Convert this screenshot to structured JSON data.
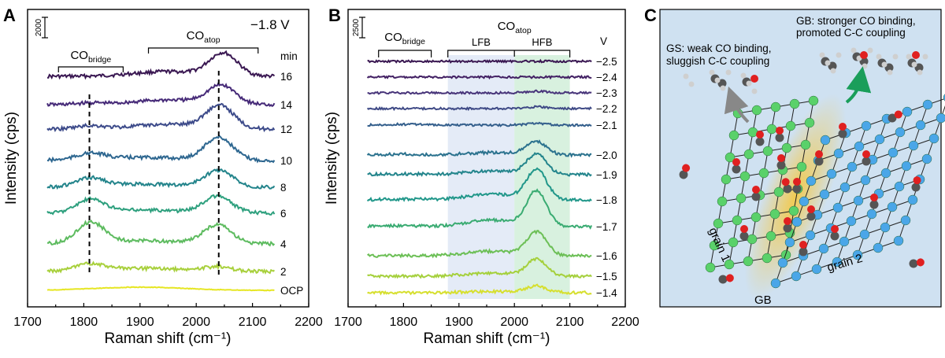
{
  "panel_labels": {
    "a": "A",
    "b": "B",
    "c": "C"
  },
  "chart_data": [
    {
      "type": "line",
      "panel": "A",
      "xlabel": "Raman shift (cm⁻¹)",
      "ylabel": "Intensity (cps)",
      "xlim": [
        1700,
        2200
      ],
      "xticks": [
        1700,
        1800,
        1900,
        2000,
        2100,
        2200
      ],
      "scale_bar": "2000",
      "potential": "−1.8 V",
      "unit_header": "min",
      "annotations": {
        "bridge_main": "CO",
        "bridge_sub": "bridge",
        "atop_main": "CO",
        "atop_sub": "atop"
      },
      "bridge_range": [
        1755,
        1870
      ],
      "atop_range": [
        1915,
        2110
      ],
      "dashed_lines": [
        1810,
        2040
      ],
      "series": [
        {
          "name": "16",
          "color": "#3a1852",
          "bridge_amp": 0.0,
          "atop_amp": 0.55,
          "atop_center": 2048
        },
        {
          "name": "14",
          "color": "#462a78",
          "bridge_amp": 0.05,
          "atop_amp": 0.45,
          "atop_center": 2045
        },
        {
          "name": "12",
          "color": "#3d4b8a",
          "bridge_amp": 0.1,
          "atop_amp": 0.55,
          "atop_center": 2042
        },
        {
          "name": "10",
          "color": "#2e6790",
          "bridge_amp": 0.18,
          "atop_amp": 0.55,
          "atop_center": 2040
        },
        {
          "name": "8",
          "color": "#23848b",
          "bridge_amp": 0.25,
          "atop_amp": 0.4,
          "atop_center": 2040
        },
        {
          "name": "6",
          "color": "#2ea07e",
          "bridge_amp": 0.4,
          "atop_amp": 0.4,
          "atop_center": 2038
        },
        {
          "name": "4",
          "color": "#5dbb5f",
          "bridge_amp": 0.65,
          "atop_amp": 0.45,
          "atop_center": 2038
        },
        {
          "name": "2",
          "color": "#a8d03c",
          "bridge_amp": 0.2,
          "atop_amp": 0.1,
          "atop_center": 2038
        },
        {
          "name": "OCP",
          "color": "#e6e623",
          "bridge_amp": 0.0,
          "atop_amp": 0.0,
          "atop_center": 2040
        }
      ]
    },
    {
      "type": "line",
      "panel": "B",
      "xlabel": "Raman shift (cm⁻¹)",
      "ylabel": "Intensity (cps)",
      "xlim": [
        1700,
        2200
      ],
      "xticks": [
        1700,
        1800,
        1900,
        2000,
        2100,
        2200
      ],
      "scale_bar": "2500",
      "unit_header": "V",
      "annotations": {
        "bridge_main": "CO",
        "bridge_sub": "bridge",
        "atop_main": "CO",
        "atop_sub": "atop",
        "lfb": "LFB",
        "hfb": "HFB"
      },
      "bridge_range": [
        1755,
        1850
      ],
      "lfb_range": [
        1880,
        2000
      ],
      "hfb_range": [
        2000,
        2100
      ],
      "series": [
        {
          "name": "−2.5",
          "color": "#3a1852",
          "bridge_amp": 0.0,
          "atop_amp": 0.0
        },
        {
          "name": "−2.4",
          "color": "#432164",
          "bridge_amp": 0.0,
          "atop_amp": 0.0
        },
        {
          "name": "−2.3",
          "color": "#48357a",
          "bridge_amp": 0.0,
          "atop_amp": 0.05
        },
        {
          "name": "−2.2",
          "color": "#3f4a86",
          "bridge_amp": 0.0,
          "atop_amp": 0.05
        },
        {
          "name": "−2.1",
          "color": "#345f8c",
          "bridge_amp": 0.05,
          "atop_amp": 0.05
        },
        {
          "name": "−2.0",
          "color": "#2b728e",
          "bridge_amp": 0.05,
          "atop_amp": 0.4
        },
        {
          "name": "−1.9",
          "color": "#23858c",
          "bridge_amp": 0.05,
          "atop_amp": 0.6
        },
        {
          "name": "−1.8",
          "color": "#21978a",
          "bridge_amp": 0.05,
          "atop_amp": 0.9
        },
        {
          "name": "−1.7",
          "color": "#3aab72",
          "bridge_amp": 0.05,
          "atop_amp": 1.05
        },
        {
          "name": "−1.6",
          "color": "#6cbf56",
          "bridge_amp": 0.0,
          "atop_amp": 0.7
        },
        {
          "name": "−1.5",
          "color": "#a5d03c",
          "bridge_amp": 0.0,
          "atop_amp": 0.5
        },
        {
          "name": "−1.4",
          "color": "#d6df2e",
          "bridge_amp": 0.0,
          "atop_amp": 0.2
        }
      ]
    }
  ],
  "schematic": {
    "gs_text_line1": "GS: weak CO binding,",
    "gs_text_line2": "sluggish C-C coupling",
    "gb_text_line1": "GB: stronger CO binding,",
    "gb_text_line2": "promoted C-C coupling",
    "grain1": "grain 1",
    "grain2": "grain 2",
    "gb_label": "GB",
    "background_color": "#cfe1f1",
    "grain1_color": "#5ad16a",
    "grain2_color": "#4aa6e8",
    "gb_glow_color": "#f3c94a"
  }
}
